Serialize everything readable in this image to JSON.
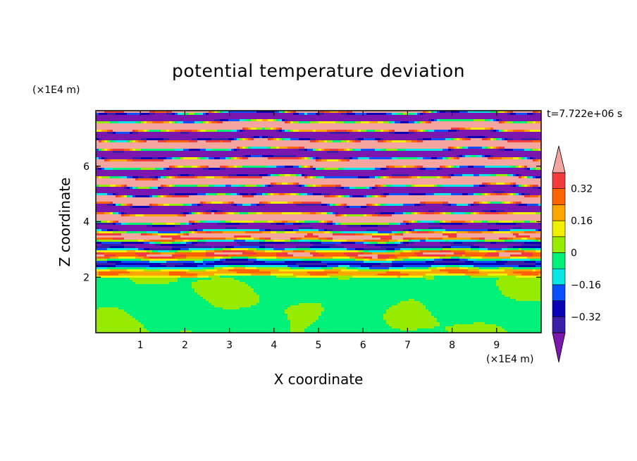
{
  "chart_data": {
    "type": "heatmap",
    "title": "potential temperature deviation",
    "xlabel": "X coordinate",
    "ylabel": "Z coordinate",
    "x_unit": "(×1E4 m)",
    "y_unit": "(×1E4 m)",
    "timestamp": "t=7.722e+06 s",
    "xlim": [
      0,
      10
    ],
    "ylim": [
      0,
      8
    ],
    "x_ticks": [
      1,
      2,
      3,
      4,
      5,
      6,
      7,
      8,
      9
    ],
    "y_ticks": [
      2,
      4,
      6
    ],
    "colorbar": {
      "levels": [
        -0.4,
        -0.32,
        -0.24,
        -0.16,
        -0.08,
        0,
        0.08,
        0.16,
        0.24,
        0.32,
        0.4
      ],
      "tick_values": [
        0.32,
        0.16,
        0,
        -0.16,
        -0.32
      ],
      "tick_labels": [
        "0.32",
        "0.16",
        "0",
        "−0.16",
        "−0.32"
      ],
      "colors": [
        "#7b16ae",
        "#3c1ea9",
        "#0a00b4",
        "#0a50ff",
        "#0ae6e6",
        "#00f078",
        "#96eb00",
        "#f0f000",
        "#ffa500",
        "#ff6400",
        "#f03c3c",
        "#f5a5a0"
      ]
    },
    "layers": [
      {
        "z_range": [
          0,
          2
        ],
        "description": "green/light-green turbulent region near 0"
      },
      {
        "z_range": [
          2,
          8
        ],
        "description": "alternating pink (>0.4) and purple (<-0.4) horizontal bands"
      }
    ]
  }
}
